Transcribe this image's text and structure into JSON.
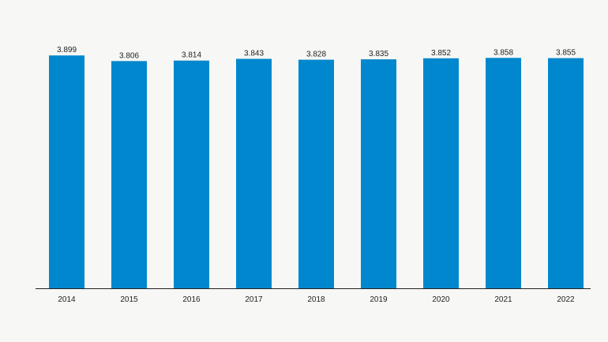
{
  "chart_data": {
    "type": "bar",
    "categories": [
      "2014",
      "2015",
      "2016",
      "2017",
      "2018",
      "2019",
      "2020",
      "2021",
      "2022"
    ],
    "values": [
      3899,
      3806,
      3814,
      3843,
      3828,
      3835,
      3852,
      3858,
      3855
    ],
    "value_labels": [
      "3.899",
      "3.806",
      "3.814",
      "3.843",
      "3.828",
      "3.835",
      "3.852",
      "3.858",
      "3.855"
    ],
    "title": "",
    "xlabel": "",
    "ylabel": "",
    "ylim": [
      0,
      4000
    ],
    "grid": false,
    "legend": "none",
    "bar_color": "#0087cd"
  }
}
